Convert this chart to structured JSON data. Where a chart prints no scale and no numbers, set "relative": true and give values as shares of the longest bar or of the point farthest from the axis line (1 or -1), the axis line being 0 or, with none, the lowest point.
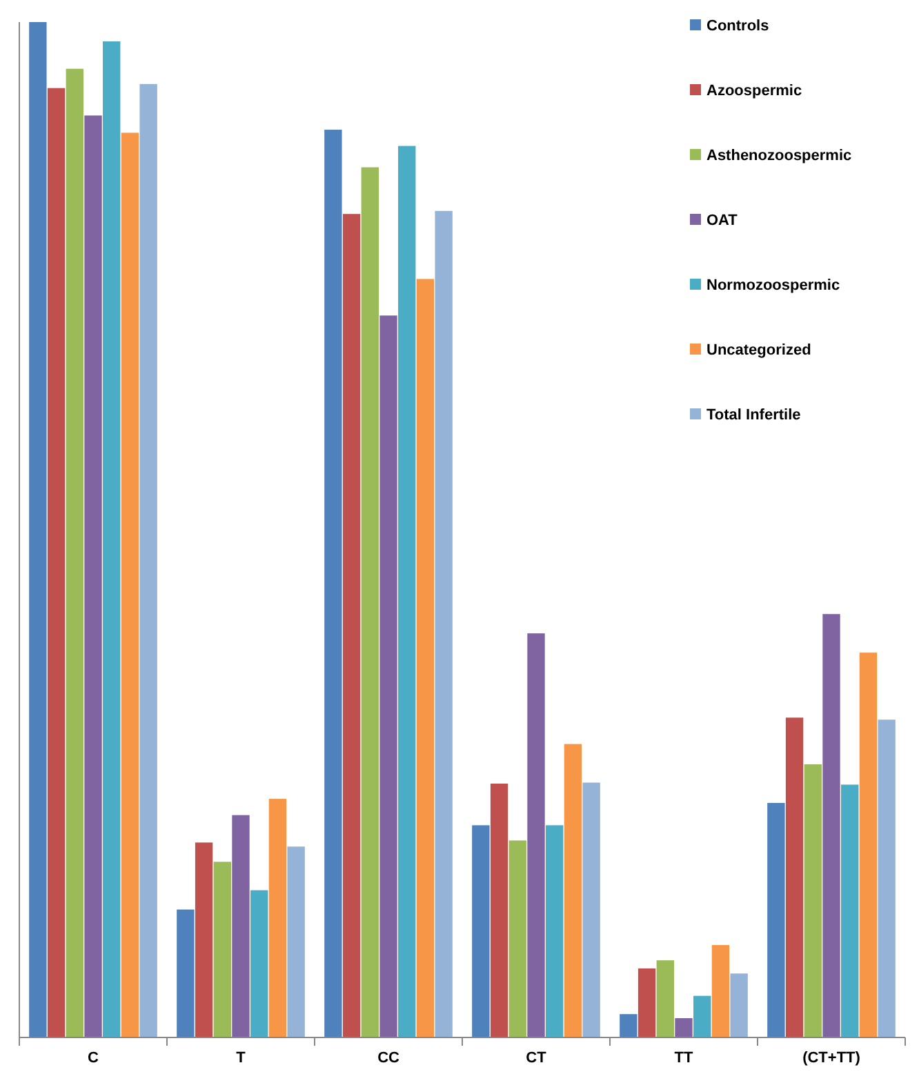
{
  "chart_data": {
    "type": "bar",
    "relative": true,
    "legend": "top right",
    "categories": [
      "C",
      "T",
      "CC",
      "CT",
      "TT",
      "(CT+TT)"
    ],
    "series": [
      {
        "name": "Controls",
        "color": "#4f81bd",
        "values": [
          1,
          0.126,
          0.894,
          0.209,
          0.023,
          0.231
        ]
      },
      {
        "name": "Azoospermic",
        "color": "#c0504d",
        "values": [
          0.935,
          0.192,
          0.811,
          0.25,
          0.068,
          0.315
        ]
      },
      {
        "name": "Asthenozoospermic",
        "color": "#9bbb59",
        "values": [
          0.954,
          0.173,
          0.857,
          0.194,
          0.076,
          0.269
        ]
      },
      {
        "name": "OAT",
        "color": "#8064a2",
        "values": [
          0.908,
          0.219,
          0.711,
          0.398,
          0.019,
          0.417
        ]
      },
      {
        "name": "Normozoospermic",
        "color": "#4bacc6",
        "values": [
          0.981,
          0.145,
          0.878,
          0.209,
          0.041,
          0.249
        ]
      },
      {
        "name": "Uncategorized",
        "color": "#f79646",
        "values": [
          0.891,
          0.235,
          0.747,
          0.289,
          0.091,
          0.379
        ]
      },
      {
        "name": "Total Infertile",
        "color": "#95b3d7",
        "values": [
          0.939,
          0.188,
          0.814,
          0.251,
          0.063,
          0.313
        ]
      }
    ]
  }
}
